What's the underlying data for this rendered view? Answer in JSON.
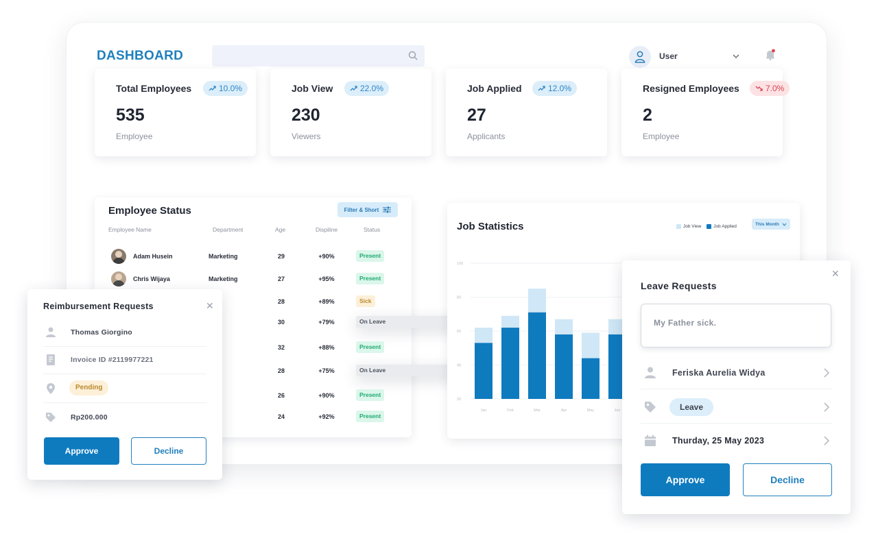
{
  "header": {
    "brand": "DASHBOARD",
    "search_placeholder": "",
    "user_name": "User"
  },
  "cards": [
    {
      "title": "Total Employees",
      "change": "10.0%",
      "trend": "up",
      "value": "535",
      "unit": "Employee"
    },
    {
      "title": "Job View",
      "change": "22.0%",
      "trend": "up",
      "value": "230",
      "unit": "Viewers"
    },
    {
      "title": "Job Applied",
      "change": "12.0%",
      "trend": "up",
      "value": "27",
      "unit": "Applicants"
    },
    {
      "title": "Resigned Employees",
      "change": "7.0%",
      "trend": "down",
      "value": "2",
      "unit": "Employee"
    }
  ],
  "employee_status": {
    "title": "Employee Status",
    "filter_label": "Filter & Short",
    "columns": [
      "Employee Name",
      "Department",
      "Age",
      "Dispiline",
      "Status"
    ],
    "rows": [
      {
        "name": "Adam Husein",
        "department": "Marketing",
        "age": "29",
        "discipline": "+90%",
        "status": "Present",
        "kind": "present"
      },
      {
        "name": "Chris Wijaya",
        "department": "Marketing",
        "age": "27",
        "discipline": "+95%",
        "status": "Present",
        "kind": "present"
      },
      {
        "name": "",
        "department": "D",
        "age": "28",
        "discipline": "+89%",
        "status": "Sick",
        "kind": "sick"
      },
      {
        "name": "",
        "department": "",
        "age": "30",
        "discipline": "+79%",
        "status": "On Leave",
        "kind": "leave"
      },
      {
        "name": "",
        "department": "",
        "age": "32",
        "discipline": "+88%",
        "status": "Present",
        "kind": "present"
      },
      {
        "name": "",
        "department": "t",
        "age": "28",
        "discipline": "+75%",
        "status": "On Leave",
        "kind": "leave"
      },
      {
        "name": "",
        "department": "nce",
        "age": "26",
        "discipline": "+90%",
        "status": "Present",
        "kind": "present"
      },
      {
        "name": "",
        "department": "nce",
        "age": "24",
        "discipline": "+92%",
        "status": "Present",
        "kind": "present"
      }
    ]
  },
  "job_statistics": {
    "title": "Job Statistics",
    "period_label": "This Month",
    "colors": {
      "job_view": "#cfe7f6",
      "job_applied": "#0f7bbf"
    }
  },
  "chart_data": {
    "type": "bar",
    "title": "Job Statistics",
    "legend_position": "top-right",
    "y_ticks": [
      "100",
      "80",
      "60",
      "40",
      "20"
    ],
    "ylim": [
      20,
      100
    ],
    "categories": [
      "Jan",
      "Feb",
      "Mar",
      "Apr",
      "May",
      "Jun"
    ],
    "series": [
      {
        "name": "Job View",
        "values": [
          62,
          69,
          85,
          67,
          59,
          67
        ]
      },
      {
        "name": "Job Applied",
        "values": [
          53,
          62,
          71,
          58,
          44,
          58
        ]
      }
    ],
    "stacked": "overlay",
    "grid": true
  },
  "reimbursement": {
    "title": "Reimbursement  Requests",
    "name": "Thomas Giorgino",
    "invoice": "Invoice ID #2119977221",
    "status": "Pending",
    "amount": "Rp200.000",
    "approve": "Approve",
    "decline": "Decline"
  },
  "leave_request": {
    "title": "Leave Requests",
    "message": "My Father sick.",
    "name": "Feriska Aurelia Widya",
    "type": "Leave",
    "date": "Thurday, 25 May 2023",
    "approve": "Approve",
    "decline": "Decline"
  }
}
